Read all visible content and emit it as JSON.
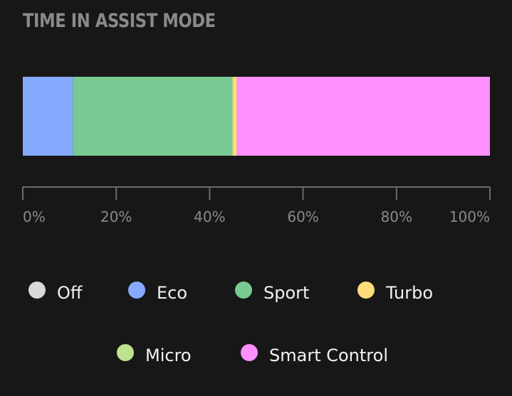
{
  "chart_data": {
    "type": "bar",
    "orientation": "horizontal",
    "stacked": true,
    "title": "TIME IN ASSIST MODE",
    "xlabel": "",
    "ylabel": "",
    "xlim": [
      0,
      100
    ],
    "ticks": [
      0,
      20,
      40,
      60,
      80,
      100
    ],
    "tick_labels": [
      "0%",
      "20%",
      "40%",
      "60%",
      "80%",
      "100%"
    ],
    "series": [
      {
        "name": "Off",
        "value": 0,
        "color": "#d9d9d9"
      },
      {
        "name": "Eco",
        "value": 10.7,
        "color": "#86aaff"
      },
      {
        "name": "Sport",
        "value": 34.2,
        "color": "#79c993"
      },
      {
        "name": "Turbo",
        "value": 0.9,
        "color": "#ffdc7a"
      },
      {
        "name": "Micro",
        "value": 0,
        "color": "#bfe28e"
      },
      {
        "name": "Smart Control",
        "value": 54.2,
        "color": "#ff8eff"
      }
    ],
    "legend_position": "bottom",
    "grid": false,
    "background": "#171717",
    "text_color": "#8a8a8a",
    "axis_color": "#6b6b6b"
  }
}
